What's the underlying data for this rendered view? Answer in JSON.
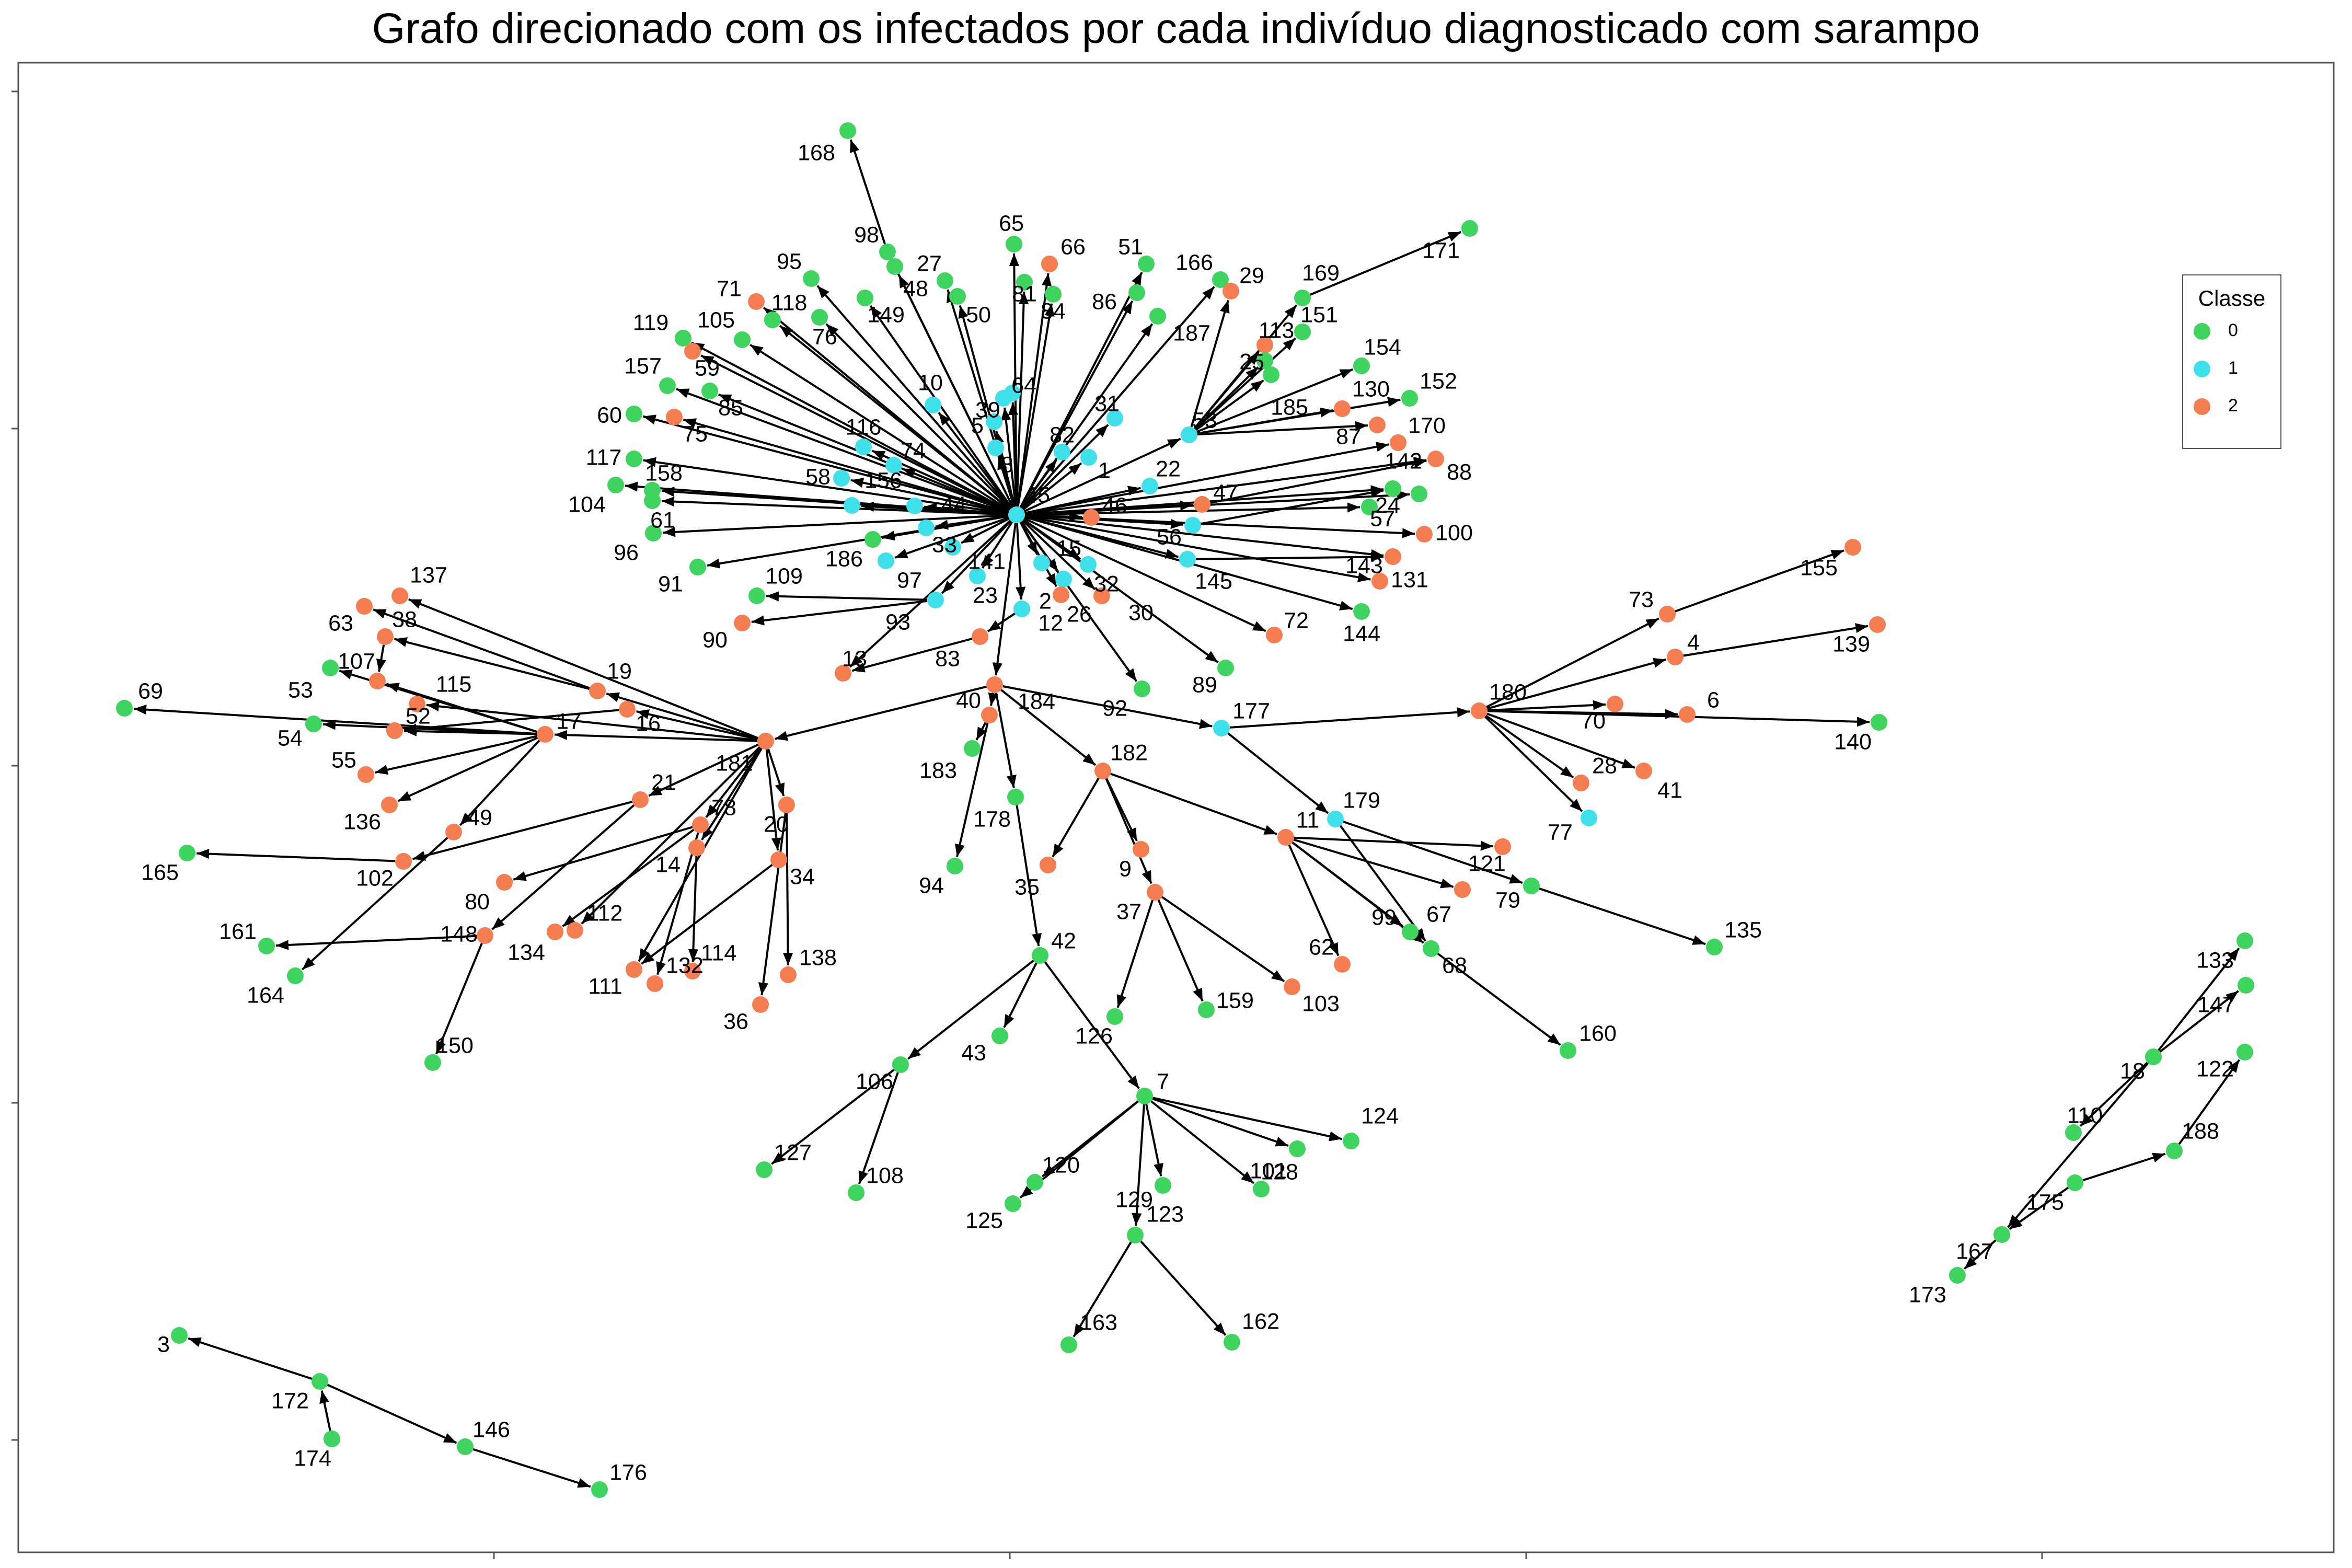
{
  "title": "Grafo direcionado com os infectados por cada indivíduo diagnosticado com sarampo",
  "legend": {
    "title": "Classe",
    "items": [
      {
        "label": "0",
        "color": "#3fd45f"
      },
      {
        "label": "1",
        "color": "#3fe0ea"
      },
      {
        "label": "2",
        "color": "#f47d52"
      }
    ]
  },
  "colors": {
    "0": "#3fd45f",
    "1": "#3fe0ea",
    "2": "#f47d52",
    "edge": "#000000"
  },
  "nodes": [
    {
      "id": "45",
      "cls": 1
    },
    {
      "id": "168",
      "cls": 0
    },
    {
      "id": "98",
      "cls": 0
    },
    {
      "id": "48",
      "cls": 0
    },
    {
      "id": "27",
      "cls": 0
    },
    {
      "id": "65",
      "cls": 0
    },
    {
      "id": "66",
      "cls": 2
    },
    {
      "id": "51",
      "cls": 0
    },
    {
      "id": "166",
      "cls": 0
    },
    {
      "id": "29",
      "cls": 2
    },
    {
      "id": "169",
      "cls": 0
    },
    {
      "id": "171",
      "cls": 0
    },
    {
      "id": "95",
      "cls": 0
    },
    {
      "id": "149",
      "cls": 0
    },
    {
      "id": "50",
      "cls": 0
    },
    {
      "id": "81",
      "cls": 0
    },
    {
      "id": "84",
      "cls": 0
    },
    {
      "id": "86",
      "cls": 0
    },
    {
      "id": "187",
      "cls": 0
    },
    {
      "id": "113",
      "cls": 2
    },
    {
      "id": "151",
      "cls": 0
    },
    {
      "id": "71",
      "cls": 2
    },
    {
      "id": "118",
      "cls": 0
    },
    {
      "id": "76",
      "cls": 0
    },
    {
      "id": "119",
      "cls": 0
    },
    {
      "id": "105",
      "cls": 0
    },
    {
      "id": "59",
      "cls": 2
    },
    {
      "id": "157",
      "cls": 0
    },
    {
      "id": "85",
      "cls": 0
    },
    {
      "id": "60",
      "cls": 0
    },
    {
      "id": "75",
      "cls": 2
    },
    {
      "id": "117",
      "cls": 0
    },
    {
      "id": "104",
      "cls": 0
    },
    {
      "id": "158",
      "cls": 0
    },
    {
      "id": "61",
      "cls": 0
    },
    {
      "id": "96",
      "cls": 0
    },
    {
      "id": "91",
      "cls": 0
    },
    {
      "id": "10",
      "cls": 1
    },
    {
      "id": "39",
      "cls": 1
    },
    {
      "id": "64",
      "cls": 1
    },
    {
      "id": "5",
      "cls": 1
    },
    {
      "id": "8",
      "cls": 1
    },
    {
      "id": "82",
      "cls": 1
    },
    {
      "id": "1",
      "cls": 1
    },
    {
      "id": "31",
      "cls": 1
    },
    {
      "id": "53",
      "cls": 1
    },
    {
      "id": "25",
      "cls": 0
    },
    {
      "id": "185",
      "cls": 0
    },
    {
      "id": "154",
      "cls": 0
    },
    {
      "id": "130",
      "cls": 2
    },
    {
      "id": "152",
      "cls": 0
    },
    {
      "id": "87",
      "cls": 2
    },
    {
      "id": "170",
      "cls": 2
    },
    {
      "id": "88",
      "cls": 2
    },
    {
      "id": "142",
      "cls": 0
    },
    {
      "id": "57",
      "cls": 0
    },
    {
      "id": "24",
      "cls": 0
    },
    {
      "id": "100",
      "cls": 2
    },
    {
      "id": "47",
      "cls": 2
    },
    {
      "id": "22",
      "cls": 1
    },
    {
      "id": "46",
      "cls": 2
    },
    {
      "id": "56",
      "cls": 1
    },
    {
      "id": "145",
      "cls": 1
    },
    {
      "id": "143",
      "cls": 2
    },
    {
      "id": "131",
      "cls": 2
    },
    {
      "id": "144",
      "cls": 0
    },
    {
      "id": "72",
      "cls": 2
    },
    {
      "id": "89",
      "cls": 0
    },
    {
      "id": "116",
      "cls": 1
    },
    {
      "id": "74",
      "cls": 1
    },
    {
      "id": "58",
      "cls": 1
    },
    {
      "id": "156",
      "cls": 1
    },
    {
      "id": "44",
      "cls": 1
    },
    {
      "id": "186",
      "cls": 0
    },
    {
      "id": "33",
      "cls": 1
    },
    {
      "id": "141",
      "cls": 1
    },
    {
      "id": "97",
      "cls": 1
    },
    {
      "id": "15",
      "cls": 1
    },
    {
      "id": "32",
      "cls": 1
    },
    {
      "id": "2",
      "cls": 1
    },
    {
      "id": "26",
      "cls": 2
    },
    {
      "id": "30",
      "cls": 2
    },
    {
      "id": "23",
      "cls": 1
    },
    {
      "id": "109",
      "cls": 0
    },
    {
      "id": "93",
      "cls": 1
    },
    {
      "id": "90",
      "cls": 2
    },
    {
      "id": "12",
      "cls": 1
    },
    {
      "id": "83",
      "cls": 2
    },
    {
      "id": "13",
      "cls": 2
    },
    {
      "id": "92",
      "cls": 0
    },
    {
      "id": "184",
      "cls": 2
    },
    {
      "id": "40",
      "cls": 2
    },
    {
      "id": "183",
      "cls": 0
    },
    {
      "id": "178",
      "cls": 0
    },
    {
      "id": "94",
      "cls": 0
    },
    {
      "id": "182",
      "cls": 2
    },
    {
      "id": "35",
      "cls": 2
    },
    {
      "id": "9",
      "cls": 2
    },
    {
      "id": "37",
      "cls": 2
    },
    {
      "id": "126",
      "cls": 0
    },
    {
      "id": "159",
      "cls": 0
    },
    {
      "id": "103",
      "cls": 2
    },
    {
      "id": "11",
      "cls": 2
    },
    {
      "id": "121",
      "cls": 2
    },
    {
      "id": "67",
      "cls": 2
    },
    {
      "id": "62",
      "cls": 2
    },
    {
      "id": "99",
      "cls": 0
    },
    {
      "id": "68",
      "cls": 0
    },
    {
      "id": "179",
      "cls": 1
    },
    {
      "id": "79",
      "cls": 0
    },
    {
      "id": "135",
      "cls": 0
    },
    {
      "id": "160",
      "cls": 0
    },
    {
      "id": "177",
      "cls": 1
    },
    {
      "id": "180",
      "cls": 2
    },
    {
      "id": "73",
      "cls": 2
    },
    {
      "id": "155",
      "cls": 2
    },
    {
      "id": "4",
      "cls": 2
    },
    {
      "id": "139",
      "cls": 2
    },
    {
      "id": "70",
      "cls": 2
    },
    {
      "id": "6",
      "cls": 2
    },
    {
      "id": "140",
      "cls": 0
    },
    {
      "id": "28",
      "cls": 2
    },
    {
      "id": "41",
      "cls": 2
    },
    {
      "id": "77",
      "cls": 1
    },
    {
      "id": "42",
      "cls": 0
    },
    {
      "id": "43",
      "cls": 0
    },
    {
      "id": "106",
      "cls": 0
    },
    {
      "id": "127",
      "cls": 0
    },
    {
      "id": "108",
      "cls": 0
    },
    {
      "id": "7",
      "cls": 0
    },
    {
      "id": "124",
      "cls": 0
    },
    {
      "id": "128",
      "cls": 0
    },
    {
      "id": "101",
      "cls": 0
    },
    {
      "id": "129",
      "cls": 0
    },
    {
      "id": "120",
      "cls": 0
    },
    {
      "id": "125",
      "cls": 0
    },
    {
      "id": "123",
      "cls": 0
    },
    {
      "id": "163",
      "cls": 0
    },
    {
      "id": "162",
      "cls": 0
    },
    {
      "id": "181",
      "cls": 2
    },
    {
      "id": "19",
      "cls": 2
    },
    {
      "id": "16",
      "cls": 2
    },
    {
      "id": "17",
      "cls": 2
    },
    {
      "id": "137",
      "cls": 2
    },
    {
      "id": "63",
      "cls": 2
    },
    {
      "id": "38",
      "cls": 2
    },
    {
      "id": "107",
      "cls": 2
    },
    {
      "id": "53b",
      "cls": 0,
      "label": "53"
    },
    {
      "id": "115",
      "cls": 2
    },
    {
      "id": "52",
      "cls": 2
    },
    {
      "id": "69",
      "cls": 0
    },
    {
      "id": "54",
      "cls": 0
    },
    {
      "id": "55",
      "cls": 2
    },
    {
      "id": "136",
      "cls": 2
    },
    {
      "id": "49",
      "cls": 2
    },
    {
      "id": "102",
      "cls": 2
    },
    {
      "id": "165",
      "cls": 0
    },
    {
      "id": "21",
      "cls": 2
    },
    {
      "id": "78",
      "cls": 2
    },
    {
      "id": "14",
      "cls": 2
    },
    {
      "id": "20",
      "cls": 2
    },
    {
      "id": "34",
      "cls": 2
    },
    {
      "id": "80",
      "cls": 2
    },
    {
      "id": "112",
      "cls": 2
    },
    {
      "id": "134",
      "cls": 2
    },
    {
      "id": "111",
      "cls": 2
    },
    {
      "id": "132",
      "cls": 2
    },
    {
      "id": "114",
      "cls": 2
    },
    {
      "id": "36",
      "cls": 2
    },
    {
      "id": "138",
      "cls": 2
    },
    {
      "id": "148",
      "cls": 2
    },
    {
      "id": "161",
      "cls": 0
    },
    {
      "id": "164",
      "cls": 0
    },
    {
      "id": "150",
      "cls": 0
    },
    {
      "id": "3",
      "cls": 0
    },
    {
      "id": "172",
      "cls": 0
    },
    {
      "id": "174",
      "cls": 0
    },
    {
      "id": "146",
      "cls": 0
    },
    {
      "id": "176",
      "cls": 0
    },
    {
      "id": "133",
      "cls": 0
    },
    {
      "id": "147",
      "cls": 0
    },
    {
      "id": "18",
      "cls": 0
    },
    {
      "id": "122",
      "cls": 0
    },
    {
      "id": "110",
      "cls": 0
    },
    {
      "id": "188",
      "cls": 0
    },
    {
      "id": "175",
      "cls": 0
    },
    {
      "id": "167",
      "cls": 0
    },
    {
      "id": "173",
      "cls": 0
    }
  ],
  "edges": [
    [
      "45",
      "10"
    ],
    [
      "45",
      "39"
    ],
    [
      "45",
      "64"
    ],
    [
      "45",
      "5"
    ],
    [
      "45",
      "8"
    ],
    [
      "45",
      "82"
    ],
    [
      "45",
      "1"
    ],
    [
      "45",
      "31"
    ],
    [
      "45",
      "53"
    ],
    [
      "45",
      "116"
    ],
    [
      "45",
      "74"
    ],
    [
      "45",
      "58"
    ],
    [
      "45",
      "156"
    ],
    [
      "45",
      "44"
    ],
    [
      "45",
      "186"
    ],
    [
      "45",
      "33"
    ],
    [
      "45",
      "141"
    ],
    [
      "45",
      "97"
    ],
    [
      "45",
      "15"
    ],
    [
      "45",
      "32"
    ],
    [
      "45",
      "2"
    ],
    [
      "45",
      "26"
    ],
    [
      "45",
      "30"
    ],
    [
      "45",
      "23"
    ],
    [
      "45",
      "93"
    ],
    [
      "45",
      "12"
    ],
    [
      "45",
      "22"
    ],
    [
      "45",
      "46"
    ],
    [
      "45",
      "47"
    ],
    [
      "45",
      "56"
    ],
    [
      "45",
      "145"
    ],
    [
      "45",
      "92"
    ],
    [
      "45",
      "89"
    ],
    [
      "45",
      "72"
    ],
    [
      "45",
      "96"
    ],
    [
      "45",
      "61"
    ],
    [
      "45",
      "104"
    ],
    [
      "45",
      "60"
    ],
    [
      "45",
      "117"
    ],
    [
      "45",
      "157"
    ],
    [
      "45",
      "95"
    ],
    [
      "45",
      "149"
    ],
    [
      "45",
      "98"
    ],
    [
      "45",
      "27"
    ],
    [
      "45",
      "65"
    ],
    [
      "45",
      "66"
    ],
    [
      "45",
      "51"
    ],
    [
      "45",
      "86"
    ],
    [
      "45",
      "187"
    ],
    [
      "45",
      "166"
    ],
    [
      "45",
      "71"
    ],
    [
      "45",
      "105"
    ],
    [
      "45",
      "119"
    ],
    [
      "45",
      "59"
    ],
    [
      "45",
      "85"
    ],
    [
      "45",
      "75"
    ],
    [
      "45",
      "158"
    ],
    [
      "45",
      "91"
    ],
    [
      "45",
      "118"
    ],
    [
      "45",
      "76"
    ],
    [
      "45",
      "48"
    ],
    [
      "45",
      "50"
    ],
    [
      "45",
      "81"
    ],
    [
      "45",
      "84"
    ],
    [
      "45",
      "13"
    ],
    [
      "45",
      "184"
    ],
    [
      "45",
      "57"
    ],
    [
      "45",
      "100"
    ],
    [
      "45",
      "143"
    ],
    [
      "45",
      "131"
    ],
    [
      "45",
      "144"
    ],
    [
      "45",
      "24"
    ],
    [
      "45",
      "142"
    ],
    [
      "45",
      "88"
    ],
    [
      "45",
      "170"
    ],
    [
      "98",
      "168"
    ],
    [
      "53",
      "25"
    ],
    [
      "53",
      "113"
    ],
    [
      "53",
      "151"
    ],
    [
      "53",
      "154"
    ],
    [
      "53",
      "130"
    ],
    [
      "53",
      "152"
    ],
    [
      "53",
      "87"
    ],
    [
      "53",
      "29"
    ],
    [
      "53",
      "169"
    ],
    [
      "53",
      "185"
    ],
    [
      "169",
      "171"
    ],
    [
      "145",
      "143"
    ],
    [
      "56",
      "142"
    ],
    [
      "47",
      "88"
    ],
    [
      "93",
      "109"
    ],
    [
      "93",
      "90"
    ],
    [
      "83",
      "13"
    ],
    [
      "12",
      "83"
    ],
    [
      "184",
      "40"
    ],
    [
      "184",
      "178"
    ],
    [
      "184",
      "182"
    ],
    [
      "184",
      "177"
    ],
    [
      "184",
      "181"
    ],
    [
      "40",
      "183"
    ],
    [
      "40",
      "94"
    ],
    [
      "182",
      "35"
    ],
    [
      "182",
      "9"
    ],
    [
      "182",
      "37"
    ],
    [
      "182",
      "11"
    ],
    [
      "37",
      "126"
    ],
    [
      "37",
      "159"
    ],
    [
      "37",
      "103"
    ],
    [
      "11",
      "121"
    ],
    [
      "11",
      "67"
    ],
    [
      "11",
      "62"
    ],
    [
      "11",
      "99"
    ],
    [
      "11",
      "68"
    ],
    [
      "179",
      "79"
    ],
    [
      "179",
      "68"
    ],
    [
      "79",
      "135"
    ],
    [
      "68",
      "160"
    ],
    [
      "177",
      "179"
    ],
    [
      "177",
      "180"
    ],
    [
      "180",
      "73"
    ],
    [
      "180",
      "4"
    ],
    [
      "180",
      "70"
    ],
    [
      "180",
      "6"
    ],
    [
      "180",
      "140"
    ],
    [
      "180",
      "28"
    ],
    [
      "180",
      "41"
    ],
    [
      "180",
      "77"
    ],
    [
      "73",
      "155"
    ],
    [
      "4",
      "139"
    ],
    [
      "178",
      "42"
    ],
    [
      "42",
      "43"
    ],
    [
      "42",
      "106"
    ],
    [
      "42",
      "7"
    ],
    [
      "106",
      "127"
    ],
    [
      "106",
      "108"
    ],
    [
      "7",
      "124"
    ],
    [
      "7",
      "128"
    ],
    [
      "7",
      "101"
    ],
    [
      "7",
      "129"
    ],
    [
      "7",
      "120"
    ],
    [
      "7",
      "125"
    ],
    [
      "7",
      "123"
    ],
    [
      "123",
      "163"
    ],
    [
      "123",
      "162"
    ],
    [
      "181",
      "19"
    ],
    [
      "181",
      "16"
    ],
    [
      "181",
      "17"
    ],
    [
      "181",
      "137"
    ],
    [
      "181",
      "21"
    ],
    [
      "181",
      "78"
    ],
    [
      "181",
      "14"
    ],
    [
      "181",
      "20"
    ],
    [
      "181",
      "34"
    ],
    [
      "181",
      "111"
    ],
    [
      "181",
      "112"
    ],
    [
      "181",
      "115"
    ],
    [
      "19",
      "63"
    ],
    [
      "19",
      "38"
    ],
    [
      "17",
      "107"
    ],
    [
      "17",
      "53b"
    ],
    [
      "17",
      "52"
    ],
    [
      "17",
      "69"
    ],
    [
      "17",
      "54"
    ],
    [
      "17",
      "55"
    ],
    [
      "17",
      "136"
    ],
    [
      "17",
      "49"
    ],
    [
      "38",
      "107"
    ],
    [
      "16",
      "52"
    ],
    [
      "21",
      "102"
    ],
    [
      "21",
      "148"
    ],
    [
      "102",
      "165"
    ],
    [
      "49",
      "164"
    ],
    [
      "78",
      "80"
    ],
    [
      "78",
      "134"
    ],
    [
      "78",
      "132"
    ],
    [
      "14",
      "114"
    ],
    [
      "20",
      "36"
    ],
    [
      "20",
      "138"
    ],
    [
      "34",
      "111"
    ],
    [
      "148",
      "161"
    ],
    [
      "148",
      "150"
    ],
    [
      "172",
      "3"
    ],
    [
      "174",
      "172"
    ],
    [
      "172",
      "146"
    ],
    [
      "146",
      "176"
    ],
    [
      "18",
      "133"
    ],
    [
      "18",
      "147"
    ],
    [
      "18",
      "110"
    ],
    [
      "18",
      "167"
    ],
    [
      "175",
      "188"
    ],
    [
      "188",
      "122"
    ],
    [
      "175",
      "167"
    ],
    [
      "167",
      "173"
    ]
  ]
}
